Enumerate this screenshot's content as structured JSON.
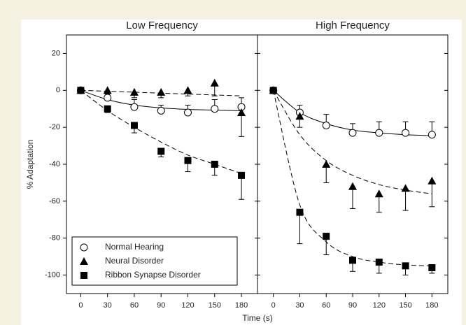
{
  "x_label": "Time (s)",
  "y_label": "% Adaptation",
  "chart_data": [
    {
      "type": "line",
      "title": "Low Frequency",
      "x": [
        0,
        30,
        60,
        90,
        120,
        150,
        180
      ],
      "xlim": [
        -16,
        198
      ],
      "ylim": [
        -110,
        30
      ],
      "xticks": [
        0,
        30,
        60,
        90,
        120,
        150,
        180
      ],
      "yticks": [
        20,
        0,
        -20,
        -40,
        -60,
        -80,
        -100
      ],
      "series": [
        {
          "name": "Normal Hearing",
          "marker": "circle-open",
          "color": "#000000",
          "line_style": "solid",
          "error_direction": "up",
          "values": [
            0,
            -4,
            -9,
            -11,
            -12,
            -10,
            -9
          ],
          "errors": [
            0,
            3,
            4,
            3,
            4,
            5,
            5
          ],
          "fit": [
            0,
            -5,
            -8,
            -9.5,
            -10.3,
            -10.7,
            -11
          ]
        },
        {
          "name": "Neural Disorder",
          "marker": "triangle",
          "color": "#000000",
          "line_style": "dashed",
          "error_direction": "down",
          "values": [
            0,
            0,
            -1,
            -1,
            0,
            4,
            -12
          ],
          "errors": [
            0,
            2,
            3,
            3,
            3,
            7,
            13
          ],
          "fit": [
            0,
            -0.5,
            -1,
            -1.5,
            -2,
            -2.5,
            -3
          ]
        },
        {
          "name": "Ribbon Synapse Disorder",
          "marker": "square",
          "color": "#000000",
          "line_style": "dashed",
          "error_direction": "down",
          "values": [
            0,
            -10,
            -19,
            -33,
            -38,
            -40,
            -46
          ],
          "errors": [
            0,
            2,
            4,
            3,
            6,
            6,
            13
          ],
          "fit": [
            0,
            -11,
            -20,
            -28,
            -35,
            -40,
            -45
          ]
        }
      ]
    },
    {
      "type": "line",
      "title": "High Frequency",
      "x": [
        0,
        30,
        60,
        90,
        120,
        150,
        180
      ],
      "xlim": [
        -18,
        198
      ],
      "ylim": [
        -110,
        30
      ],
      "xticks": [
        0,
        30,
        60,
        90,
        120,
        150,
        180
      ],
      "series": [
        {
          "marker": "circle-open",
          "color": "#000000",
          "line_style": "solid",
          "error_direction": "up",
          "values": [
            0,
            -12,
            -19,
            -23,
            -23,
            -23,
            -24
          ],
          "errors": [
            0,
            4,
            6,
            5,
            6,
            6,
            7
          ],
          "fit": [
            0,
            -12,
            -18,
            -21.5,
            -23,
            -24,
            -24.5
          ]
        },
        {
          "marker": "triangle",
          "color": "#000000",
          "line_style": "dashed",
          "error_direction": "down",
          "values": [
            0,
            -14,
            -40,
            -52,
            -56,
            -53,
            -49
          ],
          "errors": [
            0,
            6,
            10,
            12,
            10,
            12,
            14
          ],
          "fit": [
            0,
            -24,
            -38,
            -46,
            -51,
            -54,
            -56
          ]
        },
        {
          "marker": "square",
          "color": "#000000",
          "line_style": "dashed",
          "error_direction": "down",
          "values": [
            0,
            -66,
            -79,
            -92,
            -93,
            -95,
            -96
          ],
          "errors": [
            0,
            17,
            10,
            6,
            6,
            5,
            3
          ],
          "fit": [
            0,
            -62,
            -82,
            -90,
            -93,
            -94.5,
            -95
          ]
        }
      ]
    }
  ]
}
